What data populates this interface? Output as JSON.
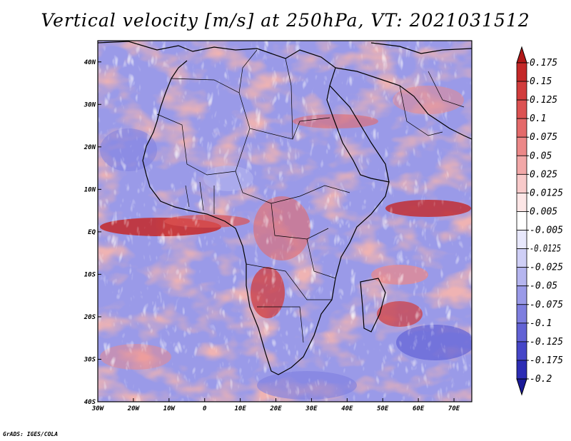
{
  "title": "Vertical velocity [m/s] at 250hPa, VT: 2021031512",
  "credit": "GrADS: IGES/COLA",
  "map": {
    "lon_range": [
      -30,
      75
    ],
    "lat_range": [
      -40,
      45
    ],
    "lat_ticks": [
      {
        "value": 40,
        "label": "40N"
      },
      {
        "value": 30,
        "label": "30N"
      },
      {
        "value": 20,
        "label": "20N"
      },
      {
        "value": 10,
        "label": "10N"
      },
      {
        "value": 0,
        "label": "EQ"
      },
      {
        "value": -10,
        "label": "10S"
      },
      {
        "value": -20,
        "label": "20S"
      },
      {
        "value": -30,
        "label": "30S"
      },
      {
        "value": -40,
        "label": "40S"
      }
    ],
    "lon_ticks": [
      {
        "value": -30,
        "label": "30W"
      },
      {
        "value": -20,
        "label": "20W"
      },
      {
        "value": -10,
        "label": "10W"
      },
      {
        "value": 0,
        "label": "0"
      },
      {
        "value": 10,
        "label": "10E"
      },
      {
        "value": 20,
        "label": "20E"
      },
      {
        "value": 30,
        "label": "30E"
      },
      {
        "value": 40,
        "label": "40E"
      },
      {
        "value": 50,
        "label": "50E"
      },
      {
        "value": 60,
        "label": "60E"
      },
      {
        "value": 70,
        "label": "70E"
      }
    ]
  },
  "colorbar": {
    "labels": [
      "0.175",
      "0.15",
      "0.125",
      "0.1",
      "0.075",
      "0.05",
      "0.025",
      "0.0125",
      "0.005",
      "-0.005",
      "-0.0125",
      "-0.025",
      "-0.05",
      "-0.075",
      "-0.1",
      "-0.125",
      "-0.175",
      "-0.2"
    ],
    "colors": [
      "#b01818",
      "#c42828",
      "#d23c3c",
      "#dc5252",
      "#e46a6a",
      "#ec8888",
      "#f2a8a8",
      "#f8caca",
      "#fde6e6",
      "#ffffff",
      "#e8e8fc",
      "#cfcff6",
      "#b5b5ef",
      "#9a9ae8",
      "#7e7edf",
      "#6262d5",
      "#4646c8",
      "#2c2cb4",
      "#1a1a98"
    ]
  }
}
